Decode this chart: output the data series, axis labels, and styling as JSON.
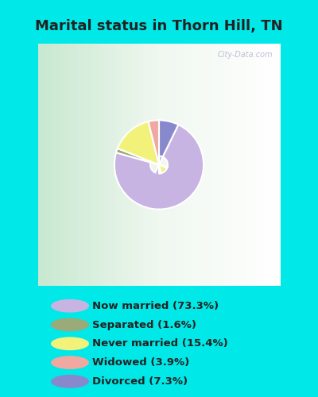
{
  "title": "Marital status in Thorn Hill, TN",
  "slices": [
    73.3,
    1.6,
    15.4,
    3.9,
    7.3
  ],
  "labels": [
    "Now married (73.3%)",
    "Separated (1.6%)",
    "Never married (15.4%)",
    "Widowed (3.9%)",
    "Divorced (7.3%)"
  ],
  "colors": [
    "#c8b4e3",
    "#9aaa78",
    "#f2f27a",
    "#f0a8a0",
    "#8888cc"
  ],
  "legend_colors": [
    "#c8b4e3",
    "#9aaa78",
    "#f2f27a",
    "#f0a8a0",
    "#8888cc"
  ],
  "bg_cyan": "#00e8e8",
  "title_color": "#222222",
  "title_fontsize": 13,
  "watermark": "City-Data.com",
  "donut_width": 0.55
}
